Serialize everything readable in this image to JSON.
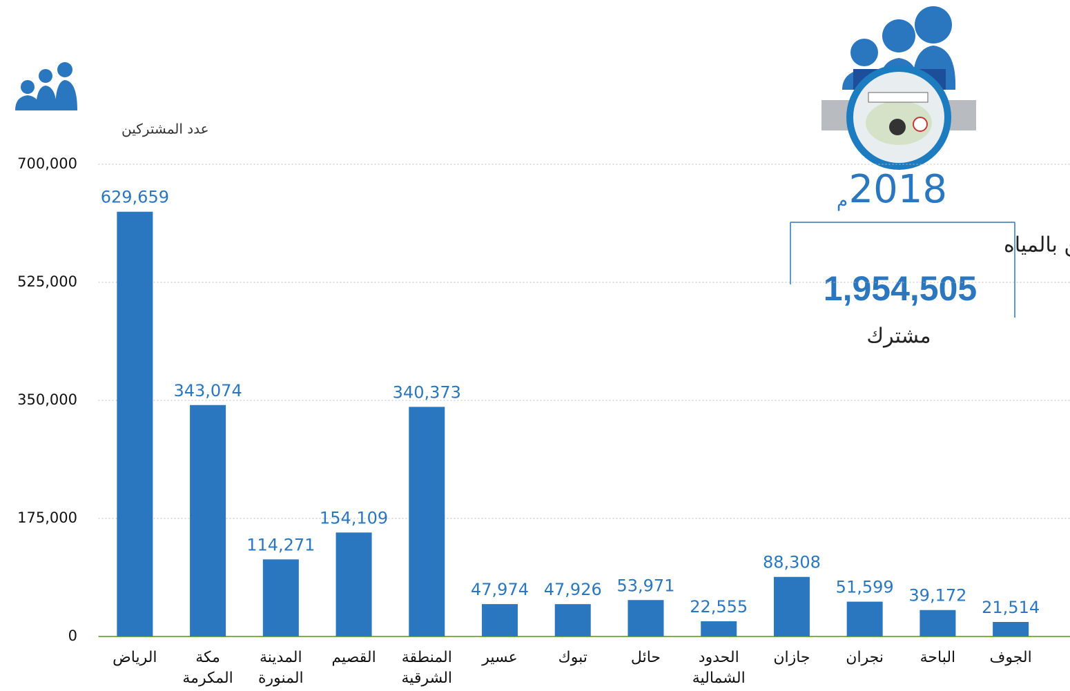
{
  "chart_data": {
    "type": "bar",
    "y_label": "عدد المشتركين",
    "categories": [
      "الرياض",
      "مكة المكرمة",
      "المدينة المنورة",
      "القصيم",
      "المنطقة الشرقية",
      "عسير",
      "تبوك",
      "حائل",
      "الحدود الشمالية",
      "جازان",
      "نجران",
      "الباحة",
      "الجوف"
    ],
    "values": [
      629659,
      343074,
      114271,
      154109,
      340373,
      47974,
      47926,
      53971,
      22555,
      88308,
      51599,
      39172,
      21514
    ],
    "value_labels": [
      "629,659",
      "343,074",
      "114,271",
      "154,109",
      "340,373",
      "47,974",
      "47,926",
      "53,971",
      "22,555",
      "88,308",
      "51,599",
      "39,172",
      "21,514"
    ],
    "color": "#2a77bf",
    "ylim": [
      0,
      700000
    ],
    "yticks": [
      0,
      {
        "value": 175000,
        "label": "175,000"
      },
      {
        "value": 350000,
        "label": "350,000"
      },
      {
        "value": 525000,
        "label": "525,000"
      },
      {
        "value": 700000,
        "label": "700,000"
      }
    ],
    "grid": true
  },
  "summary": {
    "year": "2018",
    "unit": "م",
    "title": "عدد المشتركين بالمياه",
    "total": "1,954,505",
    "caption": "مشترك"
  }
}
